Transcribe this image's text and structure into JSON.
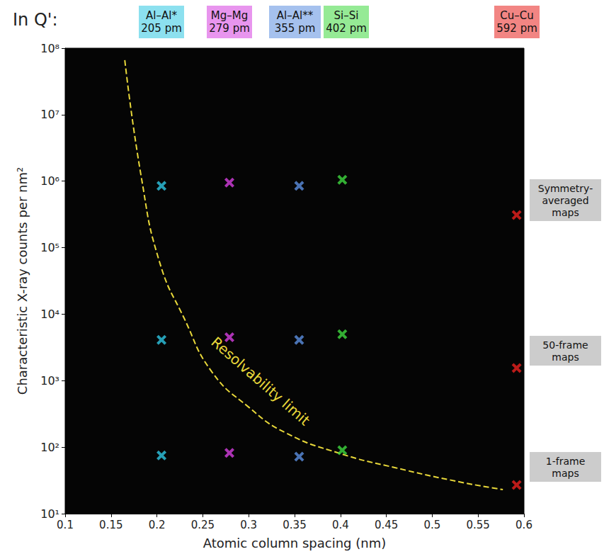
{
  "chart_data": {
    "type": "scatter",
    "title": "In Q':",
    "x_label": "Atomic column spacing (nm)",
    "y_label": "Characteristic X-ray counts per nm²",
    "xlim": [
      0.1,
      0.6
    ],
    "xticks": [
      0.1,
      0.15,
      0.2,
      0.25,
      0.3,
      0.35,
      0.4,
      0.45,
      0.5,
      0.55,
      0.6
    ],
    "ylim": [
      10,
      100000000
    ],
    "yticks": [
      {
        "value": 10,
        "label": "10¹"
      },
      {
        "value": 100,
        "label": "10²"
      },
      {
        "value": 1000,
        "label": "10³"
      },
      {
        "value": 10000,
        "label": "10⁴"
      },
      {
        "value": 100000,
        "label": "10⁵"
      },
      {
        "value": 1000000,
        "label": "10⁶"
      },
      {
        "value": 10000000,
        "label": "10⁷"
      },
      {
        "value": 100000000,
        "label": "10⁸"
      }
    ],
    "log": "y",
    "grid": false,
    "marker": "x",
    "series": [
      {
        "name": "Al–Al*",
        "label": "205 pm",
        "type": "scatter",
        "color": "#2ec6e2",
        "x": [
          0.205,
          0.205,
          0.205
        ],
        "values": [
          850000,
          4100,
          75
        ]
      },
      {
        "name": "Mg–Mg",
        "label": "279 pm",
        "type": "scatter",
        "color": "#d63ee0",
        "x": [
          0.279,
          0.279,
          0.279
        ],
        "values": [
          950000,
          4500,
          82
        ]
      },
      {
        "name": "Al–Al**",
        "label": "355 pm",
        "type": "scatter",
        "color": "#5b8fe0",
        "x": [
          0.355,
          0.355,
          0.355
        ],
        "values": [
          850000,
          4100,
          72
        ]
      },
      {
        "name": "Si–Si",
        "label": "402 pm",
        "type": "scatter",
        "color": "#3ed83e",
        "x": [
          0.402,
          0.402,
          0.402
        ],
        "values": [
          1050000,
          5000,
          90
        ]
      },
      {
        "name": "Cu–Cu",
        "label": "592 pm",
        "type": "scatter",
        "color": "#e8211e",
        "x": [
          0.592,
          0.592,
          0.592
        ],
        "values": [
          310000,
          1550,
          27
        ]
      },
      {
        "name": "Resolvability limit",
        "type": "line",
        "line_style": "dashed",
        "color": "#e8d83a",
        "x": [
          0.165,
          0.183,
          0.203,
          0.23,
          0.26,
          0.3,
          0.34,
          0.4,
          0.46,
          0.53,
          0.577
        ],
        "values": [
          66000000,
          1150000,
          60000,
          8500,
          1350,
          400,
          165,
          80,
          49,
          30,
          23
        ]
      }
    ],
    "annotations": [
      {
        "text": "Symmetry-averaged maps",
        "y": 520000
      },
      {
        "text": "50-frame maps",
        "y": 2800
      },
      {
        "text": "1-frame maps",
        "y": 50
      }
    ]
  }
}
